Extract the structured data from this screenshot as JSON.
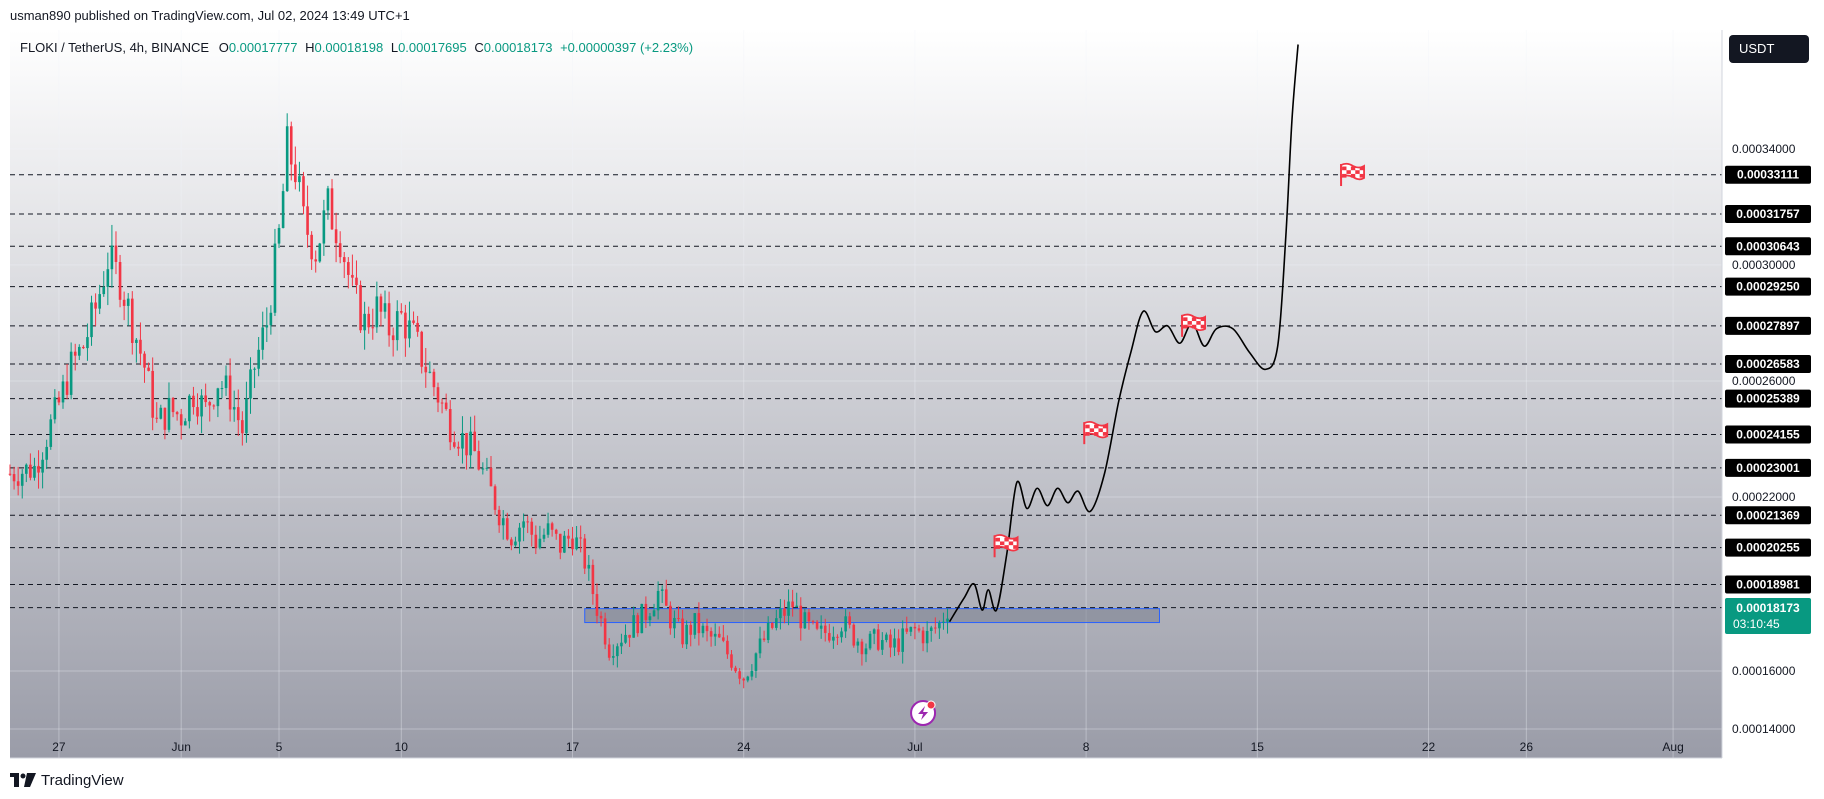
{
  "publish_line": "usman890 published on TradingView.com, Jul 02, 2024 13:49 UTC+1",
  "footer_brand": "TradingView",
  "header": {
    "symbol": "FLOKI / TetherUS, 4h, BINANCE",
    "open_label": "O",
    "open": "0.00017777",
    "high_label": "H",
    "high": "0.00018198",
    "low_label": "L",
    "low": "0.00017695",
    "close_label": "C",
    "close": "0.00018173",
    "change": "+0.00000397 (+2.23%)"
  },
  "currency_button": "USDT",
  "colors": {
    "up": "#089981",
    "down": "#f23645",
    "zone_fill": "#7a7f8f",
    "zone_border": "#2962ff",
    "price_label_bg": "#000000",
    "current_price_bg": "#089981",
    "flag": "#f23645"
  },
  "icons": [
    "lightning-event-icon",
    "flag-icon",
    "tradingview-logo-icon"
  ],
  "chart_data": {
    "type": "candlestick",
    "timeframe": "4h",
    "x_range": [
      "2024-05-25",
      "2024-08-03"
    ],
    "ylim": [
      0.00013,
      0.000381
    ],
    "y_ticks": [
      "0.00014000",
      "0.00016000",
      "0.00022000",
      "0.00026000",
      "0.00030000",
      "0.00034000"
    ],
    "x_ticks": [
      {
        "label": "27",
        "date": "2024-05-27"
      },
      {
        "label": "Jun",
        "date": "2024-06-01"
      },
      {
        "label": "5",
        "date": "2024-06-05"
      },
      {
        "label": "10",
        "date": "2024-06-10"
      },
      {
        "label": "17",
        "date": "2024-06-17"
      },
      {
        "label": "24",
        "date": "2024-06-24"
      },
      {
        "label": "Jul",
        "date": "2024-07-01"
      },
      {
        "label": "8",
        "date": "2024-07-08"
      },
      {
        "label": "15",
        "date": "2024-07-15"
      },
      {
        "label": "22",
        "date": "2024-07-22"
      },
      {
        "label": "26",
        "date": "2024-07-26"
      },
      {
        "label": "Aug",
        "date": "2024-08-01"
      }
    ],
    "horizontal_levels": [
      "0.00033111",
      "0.00031757",
      "0.00030643",
      "0.00029250",
      "0.00027897",
      "0.00026583",
      "0.00025389",
      "0.00024155",
      "0.00023001",
      "0.00021369",
      "0.00020255",
      "0.00018981",
      "0.00018185"
    ],
    "current_price": {
      "value": "0.00018173",
      "countdown": "03:10:45"
    },
    "price_series": [
      [
        "2024-05-25T00:00",
        0.000228
      ],
      [
        "2024-05-26T00:00",
        0.00023
      ],
      [
        "2024-05-27T00:00",
        0.000252
      ],
      [
        "2024-05-27T12:00",
        0.000265
      ],
      [
        "2024-05-28T00:00",
        0.000272
      ],
      [
        "2024-05-28T12:00",
        0.000285
      ],
      [
        "2024-05-29T00:00",
        0.000302
      ],
      [
        "2024-05-29T12:00",
        0.000295
      ],
      [
        "2024-05-30T00:00",
        0.00028
      ],
      [
        "2024-05-30T12:00",
        0.000265
      ],
      [
        "2024-05-31T00:00",
        0.000245
      ],
      [
        "2024-05-31T12:00",
        0.00025
      ],
      [
        "2024-06-01T00:00",
        0.000248
      ],
      [
        "2024-06-01T12:00",
        0.000256
      ],
      [
        "2024-06-02T00:00",
        0.00025
      ],
      [
        "2024-06-02T12:00",
        0.00026
      ],
      [
        "2024-06-03T00:00",
        0.000255
      ],
      [
        "2024-06-03T12:00",
        0.000243
      ],
      [
        "2024-06-04T00:00",
        0.000265
      ],
      [
        "2024-06-04T12:00",
        0.00028
      ],
      [
        "2024-06-05T00:00",
        0.00031
      ],
      [
        "2024-06-05T08:00",
        0.00034
      ],
      [
        "2024-06-05T16:00",
        0.000333
      ],
      [
        "2024-06-06T00:00",
        0.000315
      ],
      [
        "2024-06-06T12:00",
        0.000305
      ],
      [
        "2024-06-07T00:00",
        0.00032
      ],
      [
        "2024-06-07T12:00",
        0.00031
      ],
      [
        "2024-06-08T00:00",
        0.00029
      ],
      [
        "2024-06-08T12:00",
        0.00028
      ],
      [
        "2024-06-09T00:00",
        0.000285
      ],
      [
        "2024-06-09T12:00",
        0.000278
      ],
      [
        "2024-06-10T00:00",
        0.000282
      ],
      [
        "2024-06-10T12:00",
        0.000275
      ],
      [
        "2024-06-11T00:00",
        0.000265
      ],
      [
        "2024-06-11T12:00",
        0.000255
      ],
      [
        "2024-06-12T00:00",
        0.000245
      ],
      [
        "2024-06-12T12:00",
        0.00024
      ],
      [
        "2024-06-13T00:00",
        0.000235
      ],
      [
        "2024-06-13T12:00",
        0.000225
      ],
      [
        "2024-06-14T00:00",
        0.000215
      ],
      [
        "2024-06-14T12:00",
        0.000207
      ],
      [
        "2024-06-15T00:00",
        0.000212
      ],
      [
        "2024-06-15T12:00",
        0.000205
      ],
      [
        "2024-06-16T00:00",
        0.000208
      ],
      [
        "2024-06-16T12:00",
        0.000203
      ],
      [
        "2024-06-17T00:00",
        0.000207
      ],
      [
        "2024-06-17T12:00",
        0.000198
      ],
      [
        "2024-06-18T00:00",
        0.000182
      ],
      [
        "2024-06-18T12:00",
        0.000168
      ],
      [
        "2024-06-19T00:00",
        0.000172
      ],
      [
        "2024-06-19T12:00",
        0.000176
      ],
      [
        "2024-06-20T00:00",
        0.00018
      ],
      [
        "2024-06-20T12:00",
        0.000187
      ],
      [
        "2024-06-21T00:00",
        0.000178
      ],
      [
        "2024-06-21T12:00",
        0.000172
      ],
      [
        "2024-06-22T00:00",
        0.000176
      ],
      [
        "2024-06-22T12:00",
        0.000172
      ],
      [
        "2024-06-23T00:00",
        0.00017
      ],
      [
        "2024-06-23T12:00",
        0.000164
      ],
      [
        "2024-06-24T00:00",
        0.000158
      ],
      [
        "2024-06-24T12:00",
        0.000166
      ],
      [
        "2024-06-25T00:00",
        0.000173
      ],
      [
        "2024-06-25T12:00",
        0.000179
      ],
      [
        "2024-06-26T00:00",
        0.000183
      ],
      [
        "2024-06-26T12:00",
        0.000176
      ],
      [
        "2024-06-27T00:00",
        0.000172
      ],
      [
        "2024-06-27T12:00",
        0.000174
      ],
      [
        "2024-06-28T00:00",
        0.000177
      ],
      [
        "2024-06-28T12:00",
        0.000172
      ],
      [
        "2024-06-29T00:00",
        0.000169
      ],
      [
        "2024-06-29T12:00",
        0.000171
      ],
      [
        "2024-06-30T00:00",
        0.000168
      ],
      [
        "2024-06-30T12:00",
        0.000171
      ],
      [
        "2024-07-01T00:00",
        0.000174
      ],
      [
        "2024-07-01T12:00",
        0.000172
      ],
      [
        "2024-07-02T00:00",
        0.000176
      ],
      [
        "2024-07-02T08:00",
        0.0001817
      ]
    ],
    "demand_zone": {
      "price_low": 0.0001767,
      "price_high": 0.0001815,
      "date_start": "2024-06-17T12:00",
      "date_end": "2024-07-11T00:00"
    },
    "projection_path": [
      [
        "2024-07-02T10:00",
        0.000177
      ],
      [
        "2024-07-03T00:00",
        0.000185
      ],
      [
        "2024-07-03T10:00",
        0.00019
      ],
      [
        "2024-07-03T18:00",
        0.000181
      ],
      [
        "2024-07-04T00:00",
        0.000188
      ],
      [
        "2024-07-04T08:00",
        0.000181
      ],
      [
        "2024-07-04T18:00",
        0.0002
      ],
      [
        "2024-07-05T04:00",
        0.000225
      ],
      [
        "2024-07-05T14:00",
        0.000216
      ],
      [
        "2024-07-06T00:00",
        0.000223
      ],
      [
        "2024-07-06T10:00",
        0.000217
      ],
      [
        "2024-07-06T20:00",
        0.000223
      ],
      [
        "2024-07-07T06:00",
        0.000218
      ],
      [
        "2024-07-07T16:00",
        0.000222
      ],
      [
        "2024-07-08T04:00",
        0.000215
      ],
      [
        "2024-07-08T18:00",
        0.000228
      ],
      [
        "2024-07-09T08:00",
        0.000253
      ],
      [
        "2024-07-09T20:00",
        0.00027
      ],
      [
        "2024-07-10T08:00",
        0.000284
      ],
      [
        "2024-07-10T20:00",
        0.000277
      ],
      [
        "2024-07-11T08:00",
        0.000279
      ],
      [
        "2024-07-11T20:00",
        0.000273
      ],
      [
        "2024-07-12T08:00",
        0.00028
      ],
      [
        "2024-07-12T20:00",
        0.000272
      ],
      [
        "2024-07-13T08:00",
        0.000278
      ],
      [
        "2024-07-14T00:00",
        0.000278
      ],
      [
        "2024-07-14T16:00",
        0.00027
      ],
      [
        "2024-07-15T08:00",
        0.000264
      ],
      [
        "2024-07-15T20:00",
        0.000272
      ],
      [
        "2024-07-16T04:00",
        0.00031
      ],
      [
        "2024-07-16T10:00",
        0.00035
      ],
      [
        "2024-07-16T16:00",
        0.000376
      ]
    ],
    "target_flags": [
      {
        "date": "2024-07-04T16:00",
        "price": 0.000203
      },
      {
        "date": "2024-07-08T08:00",
        "price": 0.000242
      },
      {
        "date": "2024-07-12T08:00",
        "price": 0.000279
      },
      {
        "date": "2024-07-18T20:00",
        "price": 0.000331
      }
    ],
    "event_marker": {
      "date": "2024-07-01T08:00",
      "icon": "lightning-event-icon"
    }
  }
}
